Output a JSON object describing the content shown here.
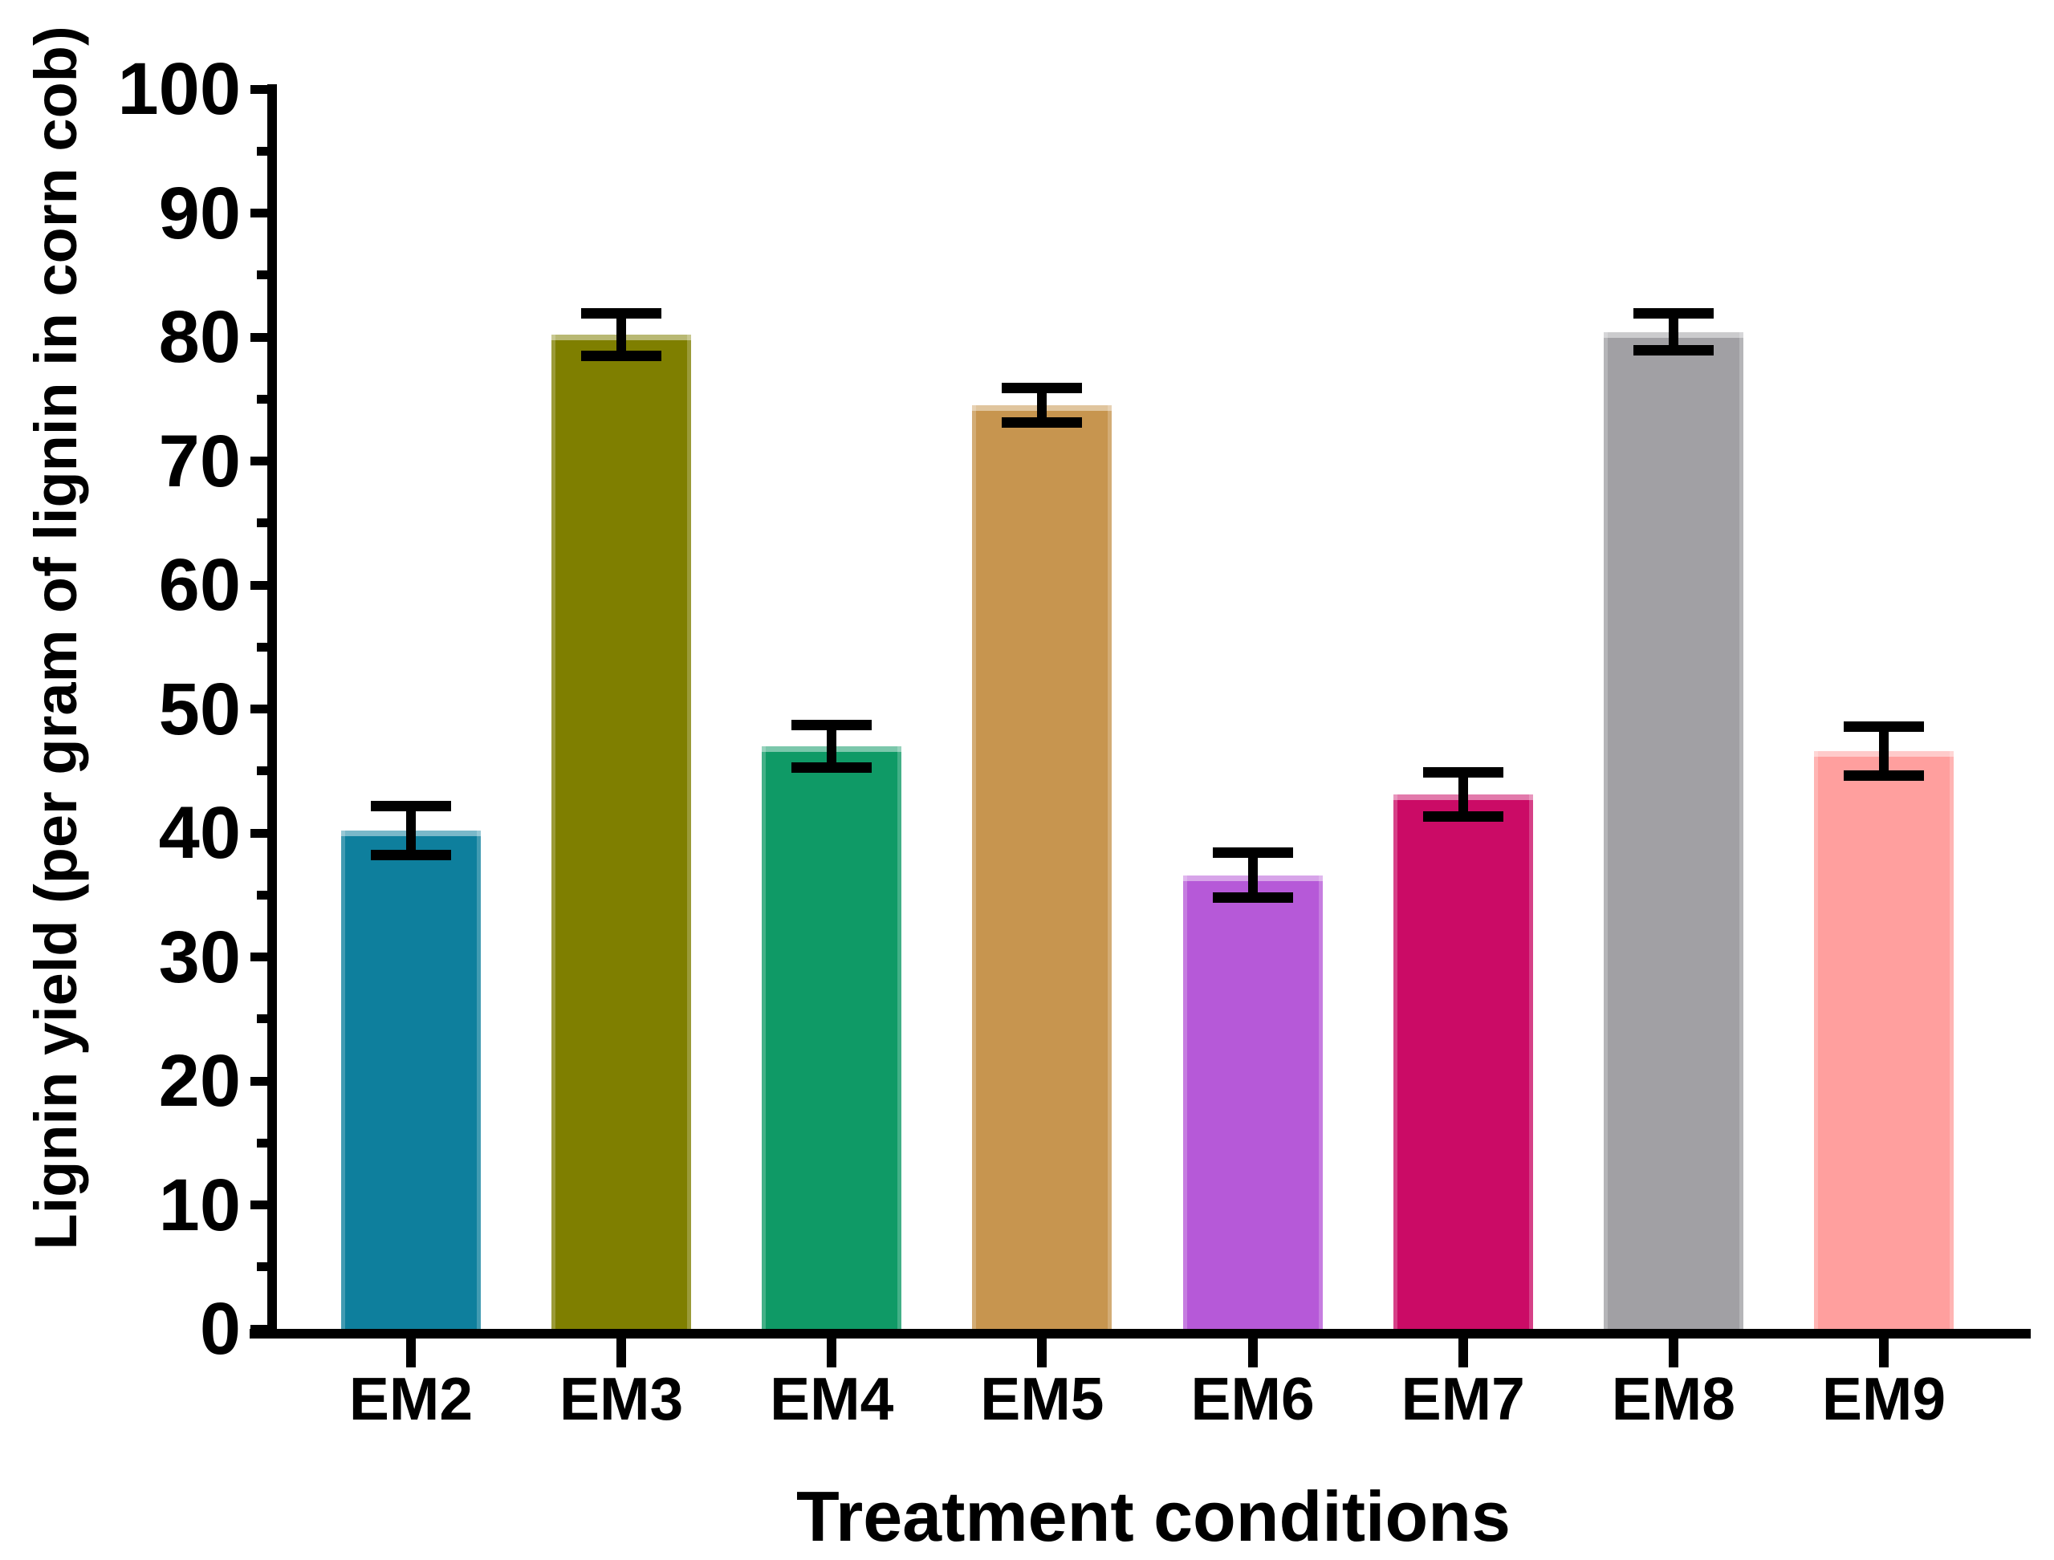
{
  "chart_data": {
    "type": "bar",
    "title": "",
    "xlabel": "Treatment conditions",
    "ylabel": "Lignin yield (per gram of lignin in corn cob)",
    "categories": [
      "EM2",
      "EM3",
      "EM4",
      "EM5",
      "EM6",
      "EM7",
      "EM8",
      "EM9"
    ],
    "series": [
      {
        "name": "Lignin yield",
        "values": [
          40.2,
          80.2,
          47.0,
          74.5,
          36.6,
          43.1,
          80.4,
          46.6
        ],
        "errors": [
          2.0,
          1.7,
          1.7,
          1.4,
          1.8,
          1.8,
          1.5,
          2.0
        ]
      }
    ],
    "bar_colors": [
      "#0E7F9D",
      "#7F7F00",
      "#0F9A66",
      "#C7954F",
      "#B659D8",
      "#CB0B66",
      "#A1A0A4",
      "#FF9F9E"
    ],
    "ylim": [
      0,
      100
    ],
    "yticks": [
      0,
      10,
      20,
      30,
      40,
      50,
      60,
      70,
      80,
      90,
      100
    ],
    "minor_yticks": [
      5,
      15,
      25,
      35,
      45,
      55,
      65,
      75,
      85,
      95
    ],
    "grid": false,
    "legend": false,
    "axis_color": "#000000",
    "error_bar_color": "#000000"
  }
}
